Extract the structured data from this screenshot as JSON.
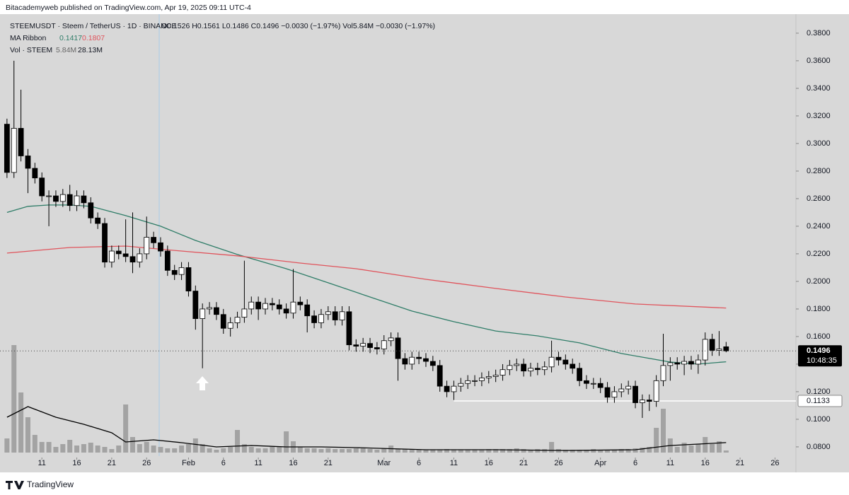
{
  "chart_data": {
    "type": "candlestick",
    "publisher": "Bitacademyweb published on TradingView.com, Apr 19, 2025 09:11 UTC-4",
    "symbol_line": "STEEMUSDT · Steem / TetherUS · 1D · BINANCE",
    "ohlc_line": "O0.1526 H0.1561 L0.1486 C0.1496 −0.0030 (−1.97%) Vol5.84M −0.0030 (−1.97%)",
    "ma_label": "MA Ribbon",
    "vol_label": "Vol · STEEM",
    "vol_value_label": "5.84M",
    "brand": "TradingView",
    "x": [
      "2025-01-06",
      "2025-01-07",
      "2025-01-08",
      "2025-01-09",
      "2025-01-10",
      "2025-01-11",
      "2025-01-12",
      "2025-01-13",
      "2025-01-14",
      "2025-01-15",
      "2025-01-16",
      "2025-01-17",
      "2025-01-18",
      "2025-01-19",
      "2025-01-20",
      "2025-01-21",
      "2025-01-22",
      "2025-01-23",
      "2025-01-24",
      "2025-01-25",
      "2025-01-26",
      "2025-01-27",
      "2025-01-28",
      "2025-01-29",
      "2025-01-30",
      "2025-01-31",
      "2025-02-01",
      "2025-02-02",
      "2025-02-03",
      "2025-02-04",
      "2025-02-05",
      "2025-02-06",
      "2025-02-07",
      "2025-02-08",
      "2025-02-09",
      "2025-02-10",
      "2025-02-11",
      "2025-02-12",
      "2025-02-13",
      "2025-02-14",
      "2025-02-15",
      "2025-02-16",
      "2025-02-17",
      "2025-02-18",
      "2025-02-19",
      "2025-02-20",
      "2025-02-21",
      "2025-02-22",
      "2025-02-23",
      "2025-02-24",
      "2025-02-25",
      "2025-02-26",
      "2025-02-27",
      "2025-02-28",
      "2025-03-01",
      "2025-03-02",
      "2025-03-03",
      "2025-03-04",
      "2025-03-05",
      "2025-03-06",
      "2025-03-07",
      "2025-03-08",
      "2025-03-09",
      "2025-03-10",
      "2025-03-11",
      "2025-03-12",
      "2025-03-13",
      "2025-03-14",
      "2025-03-15",
      "2025-03-16",
      "2025-03-17",
      "2025-03-18",
      "2025-03-19",
      "2025-03-20",
      "2025-03-21",
      "2025-03-22",
      "2025-03-23",
      "2025-03-24",
      "2025-03-25",
      "2025-03-26",
      "2025-03-27",
      "2025-03-28",
      "2025-03-29",
      "2025-03-30",
      "2025-03-31",
      "2025-04-01",
      "2025-04-02",
      "2025-04-03",
      "2025-04-04",
      "2025-04-05",
      "2025-04-06",
      "2025-04-07",
      "2025-04-08",
      "2025-04-09",
      "2025-04-10",
      "2025-04-11",
      "2025-04-12",
      "2025-04-13",
      "2025-04-14",
      "2025-04-15",
      "2025-04-16",
      "2025-04-17",
      "2025-04-18",
      "2025-04-19"
    ],
    "open": [
      0.314,
      0.279,
      0.311,
      0.291,
      0.282,
      0.275,
      0.262,
      0.262,
      0.258,
      0.263,
      0.255,
      0.262,
      0.257,
      0.246,
      0.242,
      0.214,
      0.222,
      0.22,
      0.218,
      0.214,
      0.22,
      0.232,
      0.228,
      0.222,
      0.208,
      0.205,
      0.21,
      0.193,
      0.173,
      0.18,
      0.181,
      0.176,
      0.166,
      0.17,
      0.174,
      0.18,
      0.185,
      0.18,
      0.184,
      0.183,
      0.18,
      0.177,
      0.185,
      0.183,
      0.175,
      0.17,
      0.176,
      0.178,
      0.172,
      0.178,
      0.154,
      0.153,
      0.155,
      0.152,
      0.151,
      0.157,
      0.159,
      0.144,
      0.14,
      0.145,
      0.144,
      0.142,
      0.139,
      0.124,
      0.12,
      0.124,
      0.126,
      0.128,
      0.128,
      0.13,
      0.131,
      0.132,
      0.136,
      0.139,
      0.14,
      0.135,
      0.137,
      0.136,
      0.138,
      0.145,
      0.143,
      0.14,
      0.137,
      0.128,
      0.126,
      0.126,
      0.123,
      0.116,
      0.12,
      0.122,
      0.124,
      0.112,
      0.114,
      0.113,
      0.128,
      0.139,
      0.141,
      0.14,
      0.142,
      0.14,
      0.143,
      0.158,
      0.15,
      0.1526
    ],
    "high": [
      0.318,
      0.36,
      0.339,
      0.296,
      0.286,
      0.279,
      0.266,
      0.266,
      0.267,
      0.27,
      0.266,
      0.266,
      0.261,
      0.25,
      0.246,
      0.226,
      0.226,
      0.245,
      0.25,
      0.224,
      0.247,
      0.236,
      0.232,
      0.226,
      0.212,
      0.214,
      0.214,
      0.197,
      0.184,
      0.185,
      0.185,
      0.18,
      0.174,
      0.178,
      0.215,
      0.189,
      0.189,
      0.188,
      0.188,
      0.187,
      0.184,
      0.209,
      0.189,
      0.187,
      0.179,
      0.18,
      0.182,
      0.182,
      0.182,
      0.182,
      0.158,
      0.159,
      0.159,
      0.156,
      0.161,
      0.163,
      0.163,
      0.148,
      0.149,
      0.149,
      0.148,
      0.146,
      0.143,
      0.128,
      0.128,
      0.13,
      0.132,
      0.132,
      0.134,
      0.135,
      0.136,
      0.14,
      0.143,
      0.144,
      0.144,
      0.141,
      0.141,
      0.142,
      0.157,
      0.149,
      0.147,
      0.144,
      0.141,
      0.132,
      0.13,
      0.13,
      0.127,
      0.124,
      0.126,
      0.128,
      0.128,
      0.118,
      0.118,
      0.132,
      0.162,
      0.145,
      0.145,
      0.146,
      0.146,
      0.147,
      0.163,
      0.162,
      0.164,
      0.1561
    ],
    "low": [
      0.275,
      0.275,
      0.287,
      0.264,
      0.271,
      0.258,
      0.24,
      0.254,
      0.254,
      0.251,
      0.251,
      0.253,
      0.242,
      0.238,
      0.21,
      0.21,
      0.216,
      0.214,
      0.206,
      0.21,
      0.216,
      0.224,
      0.218,
      0.204,
      0.201,
      0.201,
      0.189,
      0.165,
      0.137,
      0.176,
      0.172,
      0.162,
      0.16,
      0.166,
      0.17,
      0.176,
      0.172,
      0.176,
      0.179,
      0.176,
      0.173,
      0.173,
      0.179,
      0.163,
      0.166,
      0.166,
      0.172,
      0.168,
      0.168,
      0.15,
      0.149,
      0.149,
      0.148,
      0.147,
      0.147,
      0.153,
      0.128,
      0.136,
      0.136,
      0.14,
      0.138,
      0.135,
      0.12,
      0.116,
      0.114,
      0.12,
      0.122,
      0.124,
      0.124,
      0.126,
      0.127,
      0.128,
      0.132,
      0.135,
      0.131,
      0.131,
      0.132,
      0.132,
      0.134,
      0.139,
      0.136,
      0.133,
      0.124,
      0.122,
      0.122,
      0.119,
      0.112,
      0.112,
      0.116,
      0.118,
      0.108,
      0.101,
      0.106,
      0.109,
      0.124,
      0.128,
      0.136,
      0.132,
      0.136,
      0.133,
      0.139,
      0.146,
      0.146,
      0.1486
    ],
    "close": [
      0.279,
      0.311,
      0.291,
      0.282,
      0.275,
      0.262,
      0.262,
      0.258,
      0.263,
      0.255,
      0.262,
      0.257,
      0.246,
      0.242,
      0.214,
      0.222,
      0.22,
      0.218,
      0.214,
      0.22,
      0.232,
      0.228,
      0.222,
      0.208,
      0.205,
      0.21,
      0.193,
      0.173,
      0.18,
      0.181,
      0.176,
      0.166,
      0.17,
      0.174,
      0.18,
      0.185,
      0.18,
      0.184,
      0.183,
      0.18,
      0.177,
      0.185,
      0.183,
      0.175,
      0.17,
      0.176,
      0.178,
      0.172,
      0.178,
      0.154,
      0.153,
      0.155,
      0.152,
      0.151,
      0.157,
      0.159,
      0.144,
      0.14,
      0.145,
      0.144,
      0.142,
      0.139,
      0.124,
      0.12,
      0.124,
      0.126,
      0.128,
      0.128,
      0.13,
      0.131,
      0.132,
      0.136,
      0.139,
      0.14,
      0.135,
      0.137,
      0.136,
      0.138,
      0.145,
      0.143,
      0.14,
      0.137,
      0.128,
      0.126,
      0.126,
      0.123,
      0.116,
      0.12,
      0.122,
      0.124,
      0.112,
      0.114,
      0.113,
      0.128,
      0.139,
      0.141,
      0.14,
      0.142,
      0.14,
      0.143,
      0.158,
      0.15,
      0.151,
      0.1496
    ],
    "volume": [
      40,
      304,
      170,
      100,
      50,
      30,
      30,
      16,
      24,
      36,
      20,
      24,
      28,
      20,
      16,
      10,
      20,
      136,
      44,
      24,
      30,
      20,
      16,
      12,
      12,
      20,
      24,
      40,
      24,
      12,
      8,
      12,
      16,
      64,
      24,
      16,
      12,
      12,
      16,
      16,
      60,
      32,
      16,
      12,
      12,
      10,
      12,
      10,
      10,
      10,
      12,
      12,
      10,
      8,
      12,
      20,
      10,
      10,
      8,
      8,
      8,
      8,
      8,
      10,
      8,
      8,
      8,
      8,
      8,
      10,
      10,
      10,
      10,
      12,
      10,
      8,
      10,
      10,
      30,
      10,
      8,
      8,
      8,
      8,
      10,
      8,
      8,
      8,
      10,
      10,
      12,
      14,
      16,
      70,
      124,
      40,
      16,
      28,
      20,
      24,
      44,
      24,
      32,
      5.84
    ],
    "up_color": "#ffffff",
    "down_color": "#000000",
    "wick_color": "#000000",
    "volume_color": "#a3a3a3",
    "volume_lim": [
      0,
      320
    ],
    "volume_ma": {
      "value_label": "28.13M",
      "color": "#000000",
      "x": [
        "2025-01-06",
        "2025-01-09",
        "2025-01-13",
        "2025-01-17",
        "2025-01-21",
        "2025-01-23",
        "2025-01-27",
        "2025-01-31",
        "2025-02-05",
        "2025-02-10",
        "2025-02-15",
        "2025-02-20",
        "2025-02-25",
        "2025-03-07",
        "2025-03-17",
        "2025-03-27",
        "2025-04-06",
        "2025-04-11",
        "2025-04-15",
        "2025-04-19"
      ],
      "values": [
        100,
        130,
        100,
        80,
        56,
        30,
        36,
        28,
        16,
        20,
        16,
        16,
        14,
        8,
        8,
        6,
        8,
        20,
        24,
        28.13
      ]
    },
    "lines": [
      {
        "value_label": "0.1417",
        "color": "#2f7d68",
        "x": [
          "2025-01-06",
          "2025-01-09",
          "2025-01-12",
          "2025-01-15",
          "2025-01-18",
          "2025-01-23",
          "2025-01-28",
          "2025-02-02",
          "2025-02-08",
          "2025-02-15",
          "2025-02-21",
          "2025-02-27",
          "2025-03-05",
          "2025-03-11",
          "2025-03-17",
          "2025-03-23",
          "2025-03-29",
          "2025-04-04",
          "2025-04-11",
          "2025-04-15",
          "2025-04-19"
        ],
        "values": [
          0.25,
          0.2544,
          0.2554,
          0.2554,
          0.2544,
          0.2477,
          0.24,
          0.2297,
          0.2195,
          0.2092,
          0.199,
          0.1887,
          0.1785,
          0.1708,
          0.164,
          0.1605,
          0.1554,
          0.1477,
          0.1415,
          0.14,
          0.1417
        ]
      },
      {
        "value_label": "0.1807",
        "color": "#e0545c",
        "x": [
          "2025-01-06",
          "2025-01-15",
          "2025-01-23",
          "2025-01-31",
          "2025-02-08",
          "2025-02-17",
          "2025-02-25",
          "2025-03-07",
          "2025-03-17",
          "2025-03-27",
          "2025-04-06",
          "2025-04-19"
        ],
        "values": [
          0.2205,
          0.2246,
          0.2256,
          0.222,
          0.2185,
          0.2133,
          0.2092,
          0.2015,
          0.1949,
          0.1887,
          0.1836,
          0.1807
        ]
      }
    ],
    "level": {
      "value": 0.1133,
      "label": "0.1133",
      "from": "2025-03-11"
    },
    "last_label": "0.1496",
    "countdown": "10:48:35",
    "ylim": [
      0.0733,
      0.3938
    ],
    "yticks": [
      {
        "value": 0.38,
        "label": "0.3800"
      },
      {
        "value": 0.36,
        "label": "0.3600"
      },
      {
        "value": 0.34,
        "label": "0.3400"
      },
      {
        "value": 0.32,
        "label": "0.3200"
      },
      {
        "value": 0.3,
        "label": "0.3000"
      },
      {
        "value": 0.28,
        "label": "0.2800"
      },
      {
        "value": 0.26,
        "label": "0.2600"
      },
      {
        "value": 0.24,
        "label": "0.2400"
      },
      {
        "value": 0.22,
        "label": "0.2200"
      },
      {
        "value": 0.2,
        "label": "0.2000"
      },
      {
        "value": 0.18,
        "label": "0.1800"
      },
      {
        "value": 0.16,
        "label": "0.1600"
      },
      {
        "value": 0.14,
        "label": "0.1400"
      },
      {
        "value": 0.12,
        "label": "0.1200"
      },
      {
        "value": 0.1,
        "label": "0.1000"
      },
      {
        "value": 0.08,
        "label": "0.0800"
      }
    ],
    "xlim": [
      "2025-01-05",
      "2025-04-29"
    ],
    "xticks": [
      {
        "value": "2025-01-11",
        "label": "11"
      },
      {
        "value": "2025-01-16",
        "label": "16"
      },
      {
        "value": "2025-01-21",
        "label": "21"
      },
      {
        "value": "2025-01-26",
        "label": "26"
      },
      {
        "value": "2025-02-01",
        "label": "Feb"
      },
      {
        "value": "2025-02-06",
        "label": "6"
      },
      {
        "value": "2025-02-11",
        "label": "11"
      },
      {
        "value": "2025-02-16",
        "label": "16"
      },
      {
        "value": "2025-02-21",
        "label": "21"
      },
      {
        "value": "2025-03-01",
        "label": "Mar"
      },
      {
        "value": "2025-03-06",
        "label": "6"
      },
      {
        "value": "2025-03-11",
        "label": "11"
      },
      {
        "value": "2025-03-16",
        "label": "16"
      },
      {
        "value": "2025-03-21",
        "label": "21"
      },
      {
        "value": "2025-03-26",
        "label": "26"
      },
      {
        "value": "2025-04-01",
        "label": "Apr"
      },
      {
        "value": "2025-04-06",
        "label": "6"
      },
      {
        "value": "2025-04-11",
        "label": "11"
      },
      {
        "value": "2025-04-16",
        "label": "16"
      },
      {
        "value": "2025-04-21",
        "label": "21"
      },
      {
        "value": "2025-04-26",
        "label": "26"
      }
    ]
  }
}
